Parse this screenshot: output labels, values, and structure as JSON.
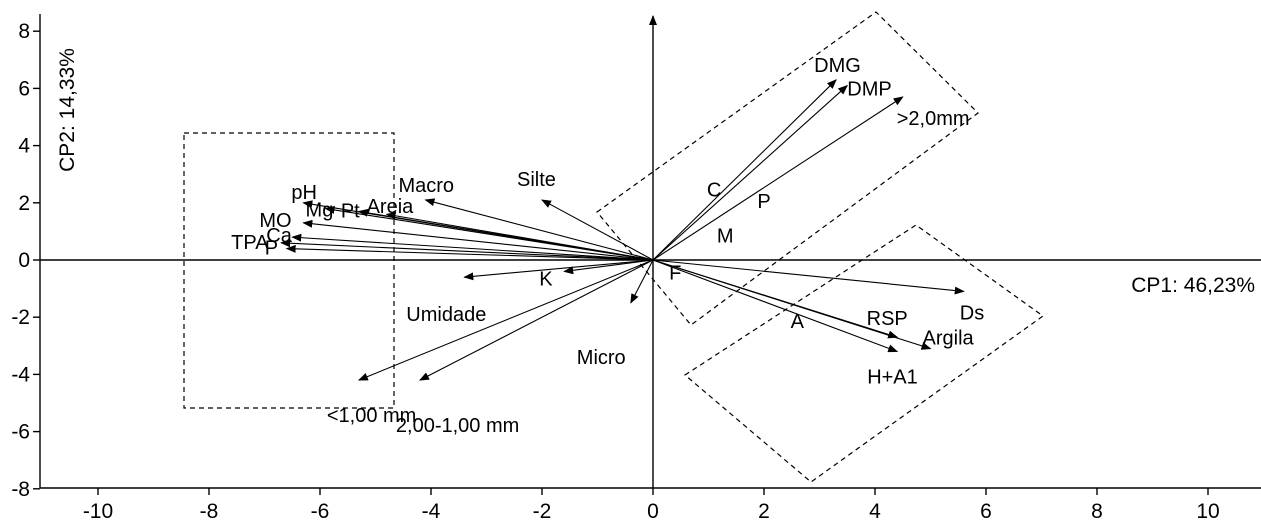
{
  "chart_data": {
    "type": "scatter",
    "subtype": "pca-biplot",
    "title": "",
    "xlabel": "CP1: 46,23%",
    "ylabel": "CP2: 14,33%",
    "xlim": [
      -11,
      11
    ],
    "ylim": [
      -8,
      8.6
    ],
    "x_ticks": [
      -10,
      -8,
      -6,
      -4,
      -2,
      0,
      2,
      4,
      6,
      8,
      10
    ],
    "y_ticks": [
      -8,
      -6,
      -4,
      -2,
      0,
      2,
      4,
      6,
      8
    ],
    "grid": false,
    "legend": "none",
    "vectors": [
      {
        "label": "DMG",
        "x": 3.3,
        "y": 6.3
      },
      {
        "label": "DMP",
        "x": 3.5,
        "y": 6.1
      },
      {
        "label": ">2,0mm",
        "x": 4.5,
        "y": 5.7
      },
      {
        "label": "Ds",
        "x": 5.6,
        "y": -1.1
      },
      {
        "label": "RSP",
        "x": 4.4,
        "y": -2.7
      },
      {
        "label": "Argila",
        "x": 5.0,
        "y": -3.1
      },
      {
        "label": "H+A1",
        "x": 4.4,
        "y": -3.2
      },
      {
        "label": "<1,00 mm",
        "x": -5.3,
        "y": -4.2
      },
      {
        "label": "2,00-1,00 mm",
        "x": -4.2,
        "y": -4.2
      },
      {
        "label": "Silte",
        "x": -2.0,
        "y": 2.1
      },
      {
        "label": "Macro",
        "x": -4.1,
        "y": 2.1
      },
      {
        "label": "Areia",
        "x": -4.8,
        "y": 1.6
      },
      {
        "label": "pH",
        "x": -6.3,
        "y": 2.0
      },
      {
        "label": "Mg",
        "x": -5.9,
        "y": 1.8
      },
      {
        "label": "Pt",
        "x": -5.3,
        "y": 1.7
      },
      {
        "label": "MO",
        "x": -6.3,
        "y": 1.3
      },
      {
        "label": "Ca",
        "x": -6.5,
        "y": 0.8
      },
      {
        "label": "TPA",
        "x": -6.7,
        "y": 0.6
      },
      {
        "label": "P",
        "x": -6.6,
        "y": 0.4
      },
      {
        "label": "Umidade",
        "x": -3.4,
        "y": -0.6
      },
      {
        "label": "K",
        "x": -1.6,
        "y": -0.4
      },
      {
        "label": "Micro",
        "x": -0.4,
        "y": -1.5
      }
    ],
    "points": [
      {
        "label": "C",
        "x": 1.1,
        "y": 2.5
      },
      {
        "label": "P",
        "x": 2.0,
        "y": 2.1
      },
      {
        "label": "M",
        "x": 1.3,
        "y": 0.9
      },
      {
        "label": "F",
        "x": 0.4,
        "y": -0.4
      },
      {
        "label": "A",
        "x": 2.6,
        "y": -2.1
      }
    ]
  }
}
